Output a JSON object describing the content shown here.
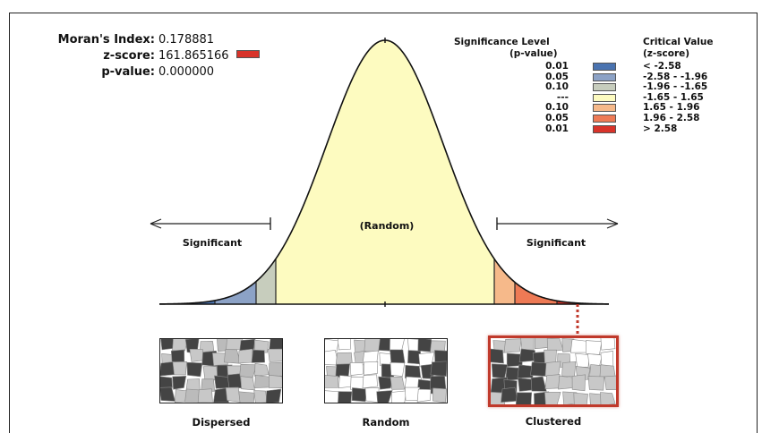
{
  "stats": {
    "morans_index_label": "Moran's Index:",
    "morans_index_value": "0.178881",
    "z_score_label": "z-score:",
    "z_score_value": "161.865166",
    "p_value_label": "p-value:",
    "p_value_value": "0.000000"
  },
  "legend": {
    "significance_header_line1": "Significance Level",
    "significance_header_line2": "(p-value)",
    "critical_header_line1": "Critical Value",
    "critical_header_line2": "(z-score)",
    "rows": [
      {
        "p": "0.01",
        "crit": "< -2.58",
        "color": "#4a73b0"
      },
      {
        "p": "0.05",
        "crit": "-2.58 - -1.96",
        "color": "#8ca2c6"
      },
      {
        "p": "0.10",
        "crit": "-1.96 - -1.65",
        "color": "#c7cdbd"
      },
      {
        "p": "---",
        "crit": "-1.65 - 1.65",
        "color": "#fdfbc0"
      },
      {
        "p": "0.10",
        "crit": "1.65 - 1.96",
        "color": "#f6b98a"
      },
      {
        "p": "0.05",
        "crit": "1.96 - 2.58",
        "color": "#ee7a55"
      },
      {
        "p": "0.01",
        "crit": "> 2.58",
        "color": "#d8332a"
      }
    ]
  },
  "curve": {
    "random_label": "(Random)",
    "significant_left": "Significant",
    "significant_right": "Significant"
  },
  "maps": [
    {
      "caption": "Dispersed",
      "highlighted": false
    },
    {
      "caption": "Random",
      "highlighted": false
    },
    {
      "caption": "Clustered",
      "highlighted": true
    }
  ],
  "colors": {
    "highlight": "#c0392b",
    "z_score_swatch": "#d8332a"
  }
}
